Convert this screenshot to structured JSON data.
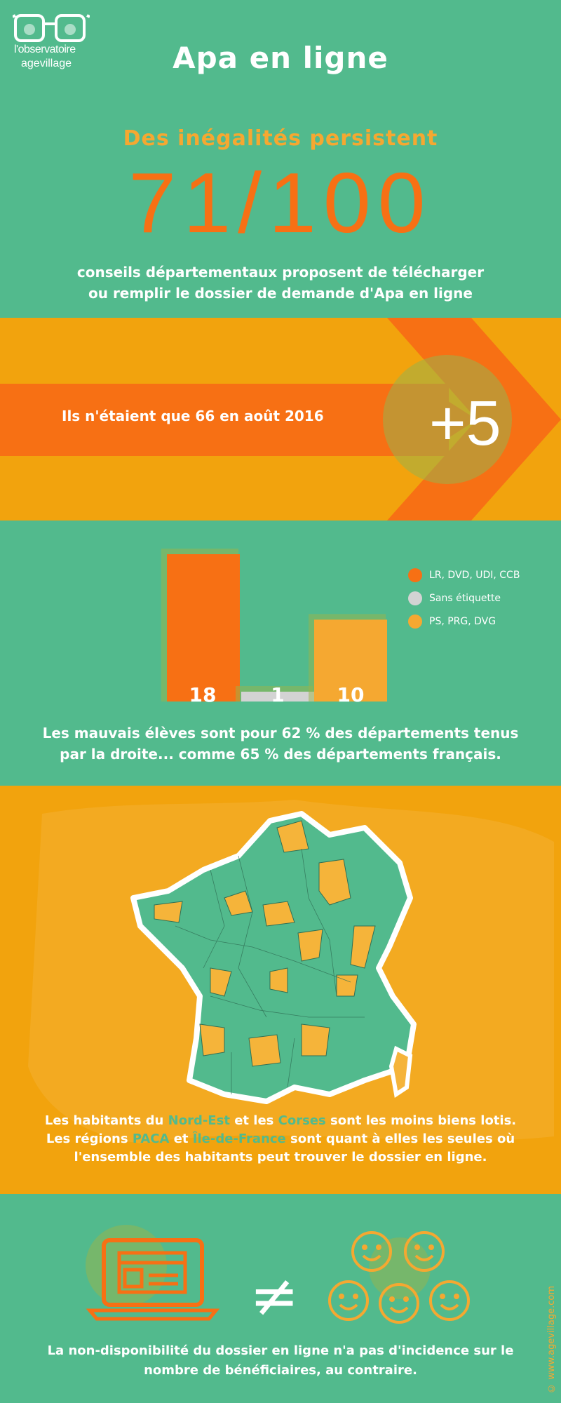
{
  "logo": {
    "name": "l'observatoire",
    "sub": "agevillage"
  },
  "header": {
    "title": "Apa en ligne",
    "subtitle": "Des inégalités persistent",
    "big_number": "71/100",
    "description_line1": "conseils départementaux proposent de télécharger",
    "description_line2": "ou remplir le dossier de demande d'Apa en ligne"
  },
  "band": {
    "text": "Ils n'étaient que 66 en août 2016",
    "delta": "+5"
  },
  "colors": {
    "green": "#52ba8d",
    "orange": "#f77014",
    "amber": "#f2a30d",
    "light_orange": "#f5a831",
    "grey": "#d3d3d3"
  },
  "chart_data": {
    "type": "bar",
    "categories": [
      "LR, DVD, UDI, CCB",
      "Sans étiquette",
      "PS, PRG, DVG"
    ],
    "values": [
      18,
      1,
      10
    ],
    "colors": [
      "#f77014",
      "#d3d3d3",
      "#f5a831"
    ],
    "legend": [
      "LR, DVD, UDI, CCB",
      "Sans étiquette",
      "PS, PRG, DVG"
    ],
    "legend_position": "right"
  },
  "chart_note": {
    "line1": "Les mauvais élèves sont pour 62 % des départements tenus",
    "line2": "par la droite... comme 65 % des départements français."
  },
  "regions": {
    "l1_a": "Les habitants du ",
    "l1_h1": "Nord-Est",
    "l1_b": " et les ",
    "l1_h2": "Corses",
    "l1_c": " sont les moins biens lotis.",
    "l2_a": "Les régions ",
    "l2_h1": "PACA",
    "l2_b": " et ",
    "l2_h2": "Île-de-France",
    "l2_c": " sont quant à elles les seules où",
    "l3": "l'ensemble des habitants peut trouver le dossier en ligne."
  },
  "bottom": {
    "neq": "≠",
    "line1": "La non-disponibilité du dossier en ligne n'a pas d'incidence sur le",
    "line2": "nombre de bénéficiaires, au contraire.",
    "credit": "© www.agevillage.com",
    "icons": [
      "laptop-icon",
      "smiley-icon"
    ]
  }
}
